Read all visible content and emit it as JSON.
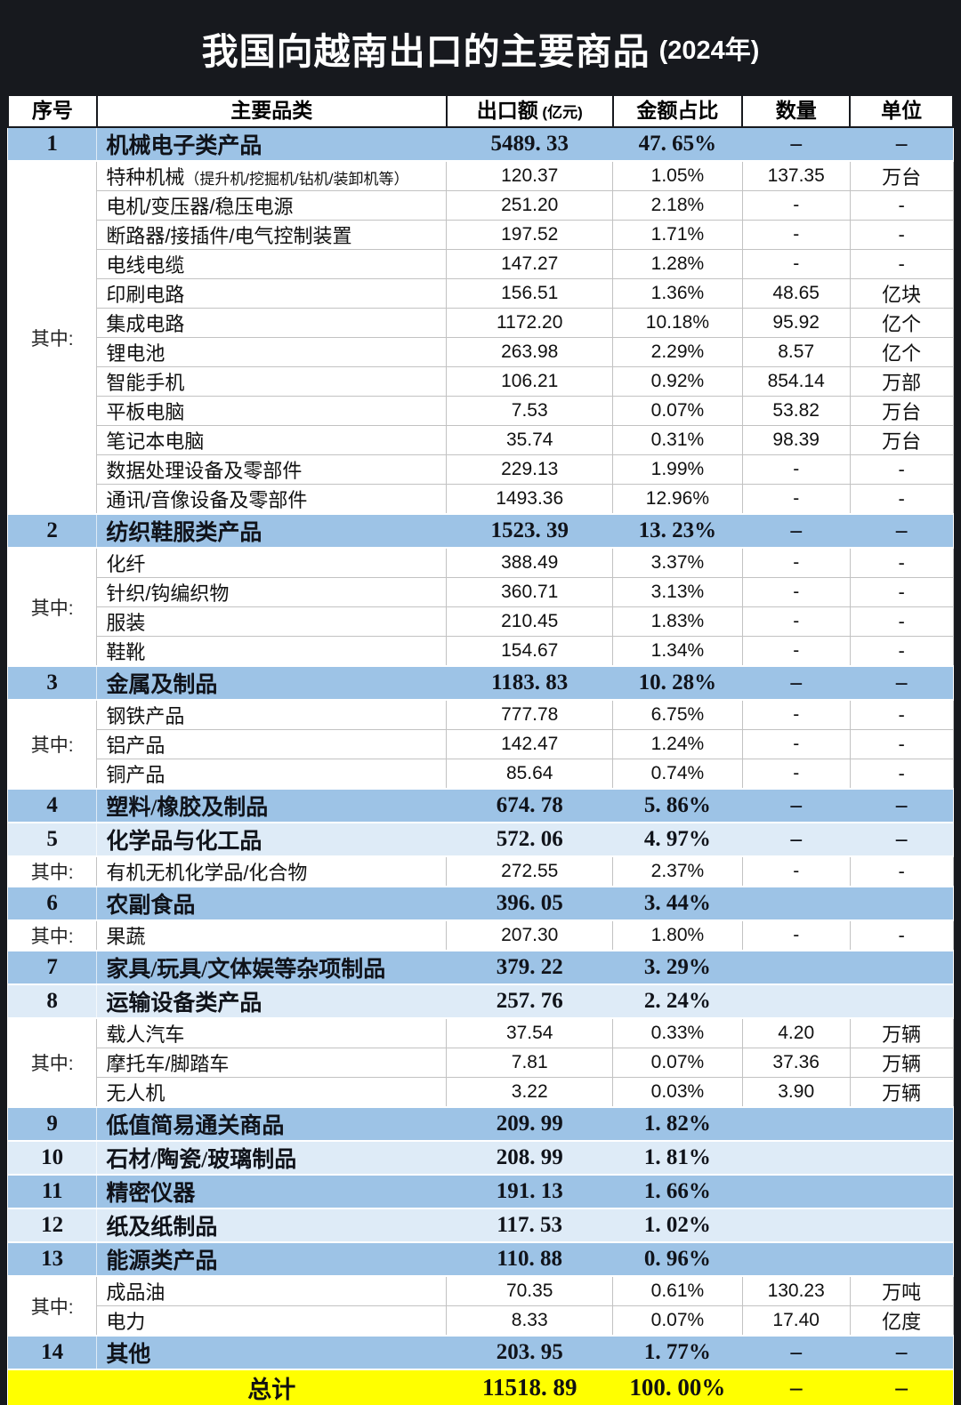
{
  "title": {
    "main": "我国向越南出口的主要商品",
    "suffix": "(2024年)"
  },
  "colors": {
    "page_bg": "#17191e",
    "row_blue_medium": "#9dc3e6",
    "row_blue_light": "#deebf7",
    "total_bg": "#ffff00",
    "grid_line": "#c2c2c2",
    "title_text": "#ffffff"
  },
  "chart_data": {
    "type": "table",
    "title": "我国向越南出口的主要商品 (2024年)",
    "columns": [
      {
        "label": "序号",
        "note": ""
      },
      {
        "label": "主要品类",
        "note": ""
      },
      {
        "label": "出口额",
        "note": "(亿元)"
      },
      {
        "label": "金额占比",
        "note": ""
      },
      {
        "label": "数量",
        "note": ""
      },
      {
        "label": "单位",
        "note": ""
      }
    ],
    "rows": [
      {
        "type": "main",
        "no": "1",
        "name": "机械电子类产品",
        "value": "5489. 33",
        "share": "47. 65%",
        "qty": "–",
        "unit": "–",
        "shade": "medium"
      },
      {
        "type": "sub",
        "group": "其中:",
        "group_span": 12,
        "name": "特种机械",
        "note": "（提升机/挖掘机/钻机/装卸机等）",
        "value": "120.37",
        "share": "1.05%",
        "qty": "137.35",
        "unit": "万台"
      },
      {
        "type": "sub",
        "name": "电机/变压器/稳压电源",
        "value": "251.20",
        "share": "2.18%",
        "qty": "-",
        "unit": "-"
      },
      {
        "type": "sub",
        "name": "断路器/接插件/电气控制装置",
        "value": "197.52",
        "share": "1.71%",
        "qty": "-",
        "unit": "-"
      },
      {
        "type": "sub",
        "name": "电线电缆",
        "value": "147.27",
        "share": "1.28%",
        "qty": "-",
        "unit": "-"
      },
      {
        "type": "sub",
        "name": "印刷电路",
        "value": "156.51",
        "share": "1.36%",
        "qty": "48.65",
        "unit": "亿块"
      },
      {
        "type": "sub",
        "name": "集成电路",
        "value": "1172.20",
        "share": "10.18%",
        "qty": "95.92",
        "unit": "亿个"
      },
      {
        "type": "sub",
        "name": "锂电池",
        "value": "263.98",
        "share": "2.29%",
        "qty": "8.57",
        "unit": "亿个"
      },
      {
        "type": "sub",
        "name": "智能手机",
        "value": "106.21",
        "share": "0.92%",
        "qty": "854.14",
        "unit": "万部"
      },
      {
        "type": "sub",
        "name": "平板电脑",
        "value": "7.53",
        "share": "0.07%",
        "qty": "53.82",
        "unit": "万台"
      },
      {
        "type": "sub",
        "name": "笔记本电脑",
        "value": "35.74",
        "share": "0.31%",
        "qty": "98.39",
        "unit": "万台"
      },
      {
        "type": "sub",
        "name": "数据处理设备及零部件",
        "value": "229.13",
        "share": "1.99%",
        "qty": "-",
        "unit": "-"
      },
      {
        "type": "sub",
        "name": "通讯/音像设备及零部件",
        "value": "1493.36",
        "share": "12.96%",
        "qty": "-",
        "unit": "-"
      },
      {
        "type": "main",
        "no": "2",
        "name": "纺织鞋服类产品",
        "value": "1523. 39",
        "share": "13. 23%",
        "qty": "–",
        "unit": "–",
        "shade": "medium"
      },
      {
        "type": "sub",
        "group": "其中:",
        "group_span": 4,
        "name": "化纤",
        "value": "388.49",
        "share": "3.37%",
        "qty": "-",
        "unit": "-"
      },
      {
        "type": "sub",
        "name": "针织/钩编织物",
        "value": "360.71",
        "share": "3.13%",
        "qty": "-",
        "unit": "-"
      },
      {
        "type": "sub",
        "name": "服装",
        "value": "210.45",
        "share": "1.83%",
        "qty": "-",
        "unit": "-"
      },
      {
        "type": "sub",
        "name": "鞋靴",
        "value": "154.67",
        "share": "1.34%",
        "qty": "-",
        "unit": "-"
      },
      {
        "type": "main",
        "no": "3",
        "name": "金属及制品",
        "value": "1183. 83",
        "share": "10. 28%",
        "qty": "–",
        "unit": "–",
        "shade": "medium"
      },
      {
        "type": "sub",
        "group": "其中:",
        "group_span": 3,
        "name": "钢铁产品",
        "value": "777.78",
        "share": "6.75%",
        "qty": "-",
        "unit": "-"
      },
      {
        "type": "sub",
        "name": "铝产品",
        "value": "142.47",
        "share": "1.24%",
        "qty": "-",
        "unit": "-"
      },
      {
        "type": "sub",
        "name": "铜产品",
        "value": "85.64",
        "share": "0.74%",
        "qty": "-",
        "unit": "-"
      },
      {
        "type": "main",
        "no": "4",
        "name": "塑料/橡胶及制品",
        "value": "674. 78",
        "share": "5. 86%",
        "qty": "–",
        "unit": "–",
        "shade": "medium"
      },
      {
        "type": "main",
        "no": "5",
        "name": "化学品与化工品",
        "value": "572. 06",
        "share": "4. 97%",
        "qty": "–",
        "unit": "–",
        "shade": "light"
      },
      {
        "type": "sub",
        "group": "其中:",
        "group_span": 1,
        "name": "有机无机化学品/化合物",
        "value": "272.55",
        "share": "2.37%",
        "qty": "-",
        "unit": "-"
      },
      {
        "type": "main",
        "no": "6",
        "name": "农副食品",
        "value": "396. 05",
        "share": "3. 44%",
        "qty": "",
        "unit": "",
        "shade": "medium"
      },
      {
        "type": "sub",
        "group": "其中:",
        "group_span": 1,
        "name": "果蔬",
        "value": "207.30",
        "share": "1.80%",
        "qty": "-",
        "unit": "-"
      },
      {
        "type": "main",
        "no": "7",
        "name": "家具/玩具/文体娱等杂项制品",
        "value": "379. 22",
        "share": "3. 29%",
        "qty": "",
        "unit": "",
        "shade": "medium"
      },
      {
        "type": "main",
        "no": "8",
        "name": "运输设备类产品",
        "value": "257. 76",
        "share": "2. 24%",
        "qty": "",
        "unit": "",
        "shade": "light"
      },
      {
        "type": "sub",
        "group": "其中:",
        "group_span": 3,
        "name": "载人汽车",
        "value": "37.54",
        "share": "0.33%",
        "qty": "4.20",
        "unit": "万辆"
      },
      {
        "type": "sub",
        "name": "摩托车/脚踏车",
        "value": "7.81",
        "share": "0.07%",
        "qty": "37.36",
        "unit": "万辆"
      },
      {
        "type": "sub",
        "name": "无人机",
        "value": "3.22",
        "share": "0.03%",
        "qty": "3.90",
        "unit": "万辆"
      },
      {
        "type": "main",
        "no": "9",
        "name": "低值简易通关商品",
        "value": "209. 99",
        "share": "1. 82%",
        "qty": "",
        "unit": "",
        "shade": "medium"
      },
      {
        "type": "main",
        "no": "10",
        "name": "石材/陶瓷/玻璃制品",
        "value": "208. 99",
        "share": "1. 81%",
        "qty": "",
        "unit": "",
        "shade": "light"
      },
      {
        "type": "main",
        "no": "11",
        "name": "精密仪器",
        "value": "191. 13",
        "share": "1. 66%",
        "qty": "",
        "unit": "",
        "shade": "medium"
      },
      {
        "type": "main",
        "no": "12",
        "name": "纸及纸制品",
        "value": "117. 53",
        "share": "1. 02%",
        "qty": "",
        "unit": "",
        "shade": "light"
      },
      {
        "type": "main",
        "no": "13",
        "name": "能源类产品",
        "value": "110. 88",
        "share": "0. 96%",
        "qty": "",
        "unit": "",
        "shade": "medium"
      },
      {
        "type": "sub",
        "group": "其中:",
        "group_span": 2,
        "name": "成品油",
        "value": "70.35",
        "share": "0.61%",
        "qty": "130.23",
        "unit": "万吨"
      },
      {
        "type": "sub",
        "name": "电力",
        "value": "8.33",
        "share": "0.07%",
        "qty": "17.40",
        "unit": "亿度"
      },
      {
        "type": "main",
        "no": "14",
        "name": "其他",
        "value": "203. 95",
        "share": "1. 77%",
        "qty": "–",
        "unit": "–",
        "shade": "medium"
      }
    ],
    "total": {
      "label": "总计",
      "value": "11518. 89",
      "share": "100. 00%",
      "qty": "–",
      "unit": "–"
    }
  }
}
